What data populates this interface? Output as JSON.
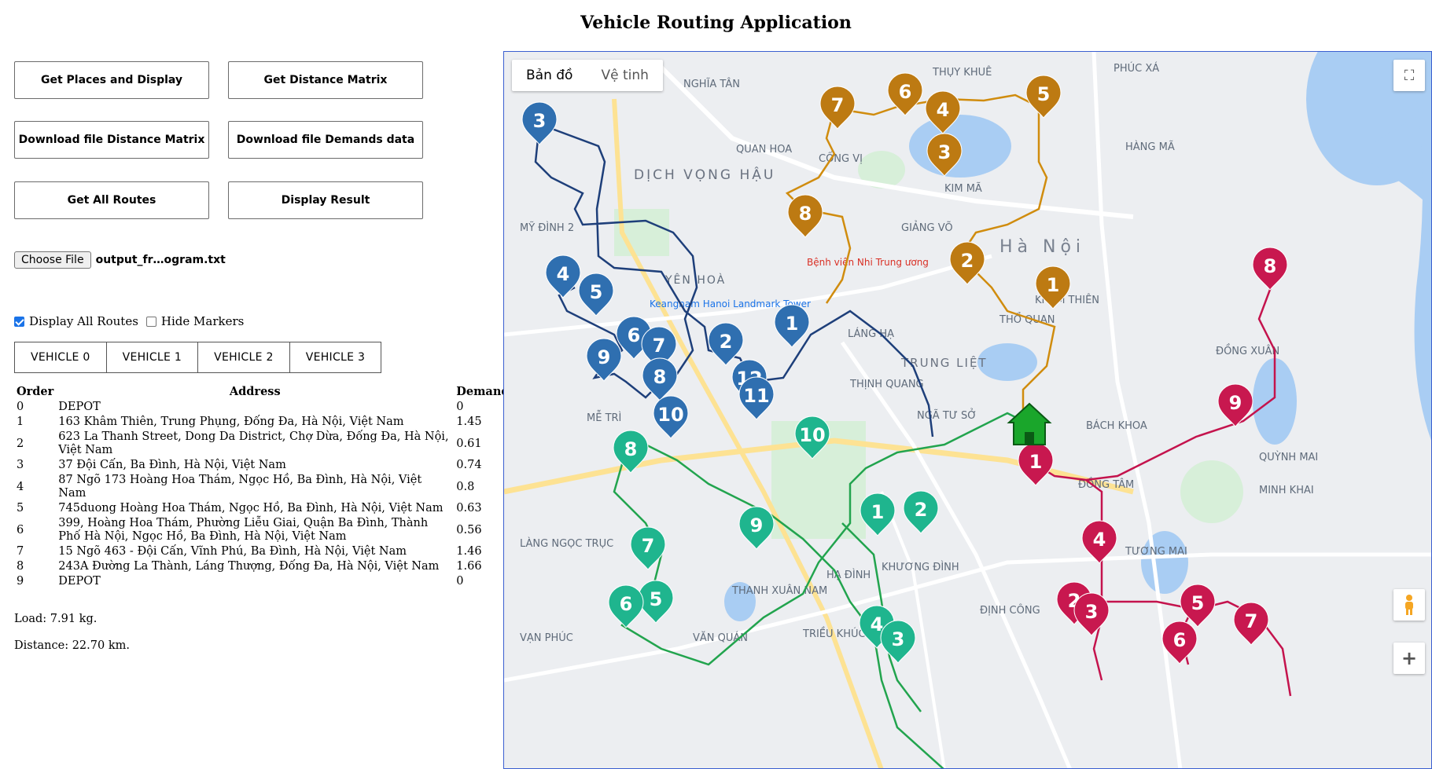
{
  "page_title": "Vehicle Routing Application",
  "buttons": {
    "get_places": "Get Places and Display",
    "get_matrix": "Get Distance Matrix",
    "download_matrix": "Download file Distance Matrix",
    "download_demands": "Download file Demands data",
    "get_routes": "Get All Routes",
    "display_result": "Display Result"
  },
  "file_input": {
    "button": "Choose File",
    "filename": "output_fr…ogram.txt"
  },
  "options": {
    "display_all_routes": "Display All Routes",
    "hide_markers": "Hide Markers"
  },
  "vehicles": [
    "VEHICLE 0",
    "VEHICLE 1",
    "VEHICLE 2",
    "VEHICLE 3"
  ],
  "table": {
    "headers": {
      "order": "Order",
      "address": "Address",
      "demand": "Demand"
    },
    "rows": [
      {
        "order": "0",
        "address": "DEPOT",
        "demand": "0"
      },
      {
        "order": "1",
        "address": "163 Khâm Thiên, Trung Phụng, Đống Đa, Hà Nội, Việt Nam",
        "demand": "1.45"
      },
      {
        "order": "2",
        "address": "623 La Thanh Street, Dong Da District, Chợ Dừa, Đống Đa, Hà Nội, Việt Nam",
        "demand": "0.61"
      },
      {
        "order": "3",
        "address": "37 Đội Cấn, Ba Đình, Hà Nội, Việt Nam",
        "demand": "0.74"
      },
      {
        "order": "4",
        "address": "87 Ngõ 173 Hoàng Hoa Thám, Ngọc Hồ, Ba Đình, Hà Nội, Việt Nam",
        "demand": "0.8"
      },
      {
        "order": "5",
        "address": "745duong Hoàng Hoa Thám, Ngọc Hồ, Ba Đình, Hà Nội, Việt Nam",
        "demand": "0.63"
      },
      {
        "order": "6",
        "address": "399, Hoàng Hoa Thám, Phường Liễu Giai, Quận Ba Đình, Thành Phố Hà Nội, Ngọc Hồ, Ba Đình, Hà Nội, Việt Nam",
        "demand": "0.56"
      },
      {
        "order": "7",
        "address": "15 Ngõ 463 - Đội Cấn, Vĩnh Phú, Ba Đình, Hà Nội, Việt Nam",
        "demand": "1.46"
      },
      {
        "order": "8",
        "address": "243A Đường La Thành, Láng Thượng, Đống Đa, Hà Nội, Việt Nam",
        "demand": "1.66"
      },
      {
        "order": "9",
        "address": "DEPOT",
        "demand": "0"
      }
    ]
  },
  "load_text": "Load: 7.91 kg.",
  "distance_text": "Distance: 22.70 km.",
  "map": {
    "tabs": [
      "Bản đồ",
      "Vệ tinh"
    ],
    "labels": {
      "ha_noi": "Hà Nội",
      "dich_vong_hau": "DỊCH VỌNG HẬU",
      "trung_liet": "TRUNG LIỆT",
      "yen_hoa": "YÊN HOÀ",
      "quan_hoa": "QUAN HOA",
      "nghia_tan": "NGHĨA TÂN",
      "my_dinh_2": "MỸ ĐÌNH 2",
      "lang_ha": "LÁNG HẠ",
      "me_tri": "MỄ TRÌ",
      "khuong_dinh": "KHƯƠNG ĐÌNH",
      "dinh_cong": "ĐỊNH CÔNG",
      "thanh_xuan_nam": "THANH XUÂN NAM",
      "hang_ma": "HÀNG MÃ",
      "phuc_xa": "PHÚC XÁ",
      "thuy_khue": "THỤY KHUÊ",
      "dong_tam": "ĐỒNG TÂM",
      "bach_khoa": "BÁCH KHOA",
      "tuong_mai": "TƯƠNG MAI",
      "ha_dinh": "HẠ ĐÌNH",
      "lang_ngoc_truc": "LÀNG NGỌC TRỤC",
      "kham_thien": "KHÂM THIÊN",
      "tho_quan": "THỔ QUAN",
      "giang_vo": "GIẢNG VÕ",
      "cong_vi": "CỐNG VỊ",
      "kim_ma": "KIM MÃ",
      "dong_xuan": "ĐỒNG XUÂN",
      "hospital": "Bệnh viện Nhi Trung ương",
      "keangnam": "Keangnam Hanoi Landmark Tower",
      "thinh_quang": "THỊNH QUANG",
      "nga_tu_so": "NGÃ TƯ SỞ",
      "quynh_mai": "QUỲNH MAI",
      "minh_khai": "MINH KHAI",
      "van_phuc": "VẠN PHÚC",
      "van_quan": "VĂN QUÁN",
      "trieu_khuc": "TRIỀU KHÚC"
    },
    "route_colors": {
      "v0": "#1e3f7a",
      "v1": "#d08c0e",
      "v2": "#22a44e",
      "v3": "#c4134d"
    },
    "marker_colors": {
      "v0": "#2f6fb0",
      "v1": "#bd7a12",
      "v2": "#1fb58e",
      "v3": "#c8184f",
      "depot": "#1aa62b"
    },
    "markers": {
      "v0": [
        "3",
        "4",
        "5",
        "6",
        "7",
        "9",
        "8",
        "10",
        "2",
        "1",
        "12",
        "11"
      ],
      "v1": [
        "7",
        "6",
        "4",
        "5",
        "3",
        "8",
        "2",
        "1"
      ],
      "v2": [
        "10",
        "8",
        "1",
        "2",
        "9",
        "7",
        "5",
        "6",
        "4",
        "3"
      ],
      "v3": [
        "8",
        "9",
        "1",
        "4",
        "2",
        "3",
        "5",
        "6",
        "7"
      ]
    },
    "controls": {
      "fullscreen": "⛶",
      "zoom_in": "+"
    }
  }
}
